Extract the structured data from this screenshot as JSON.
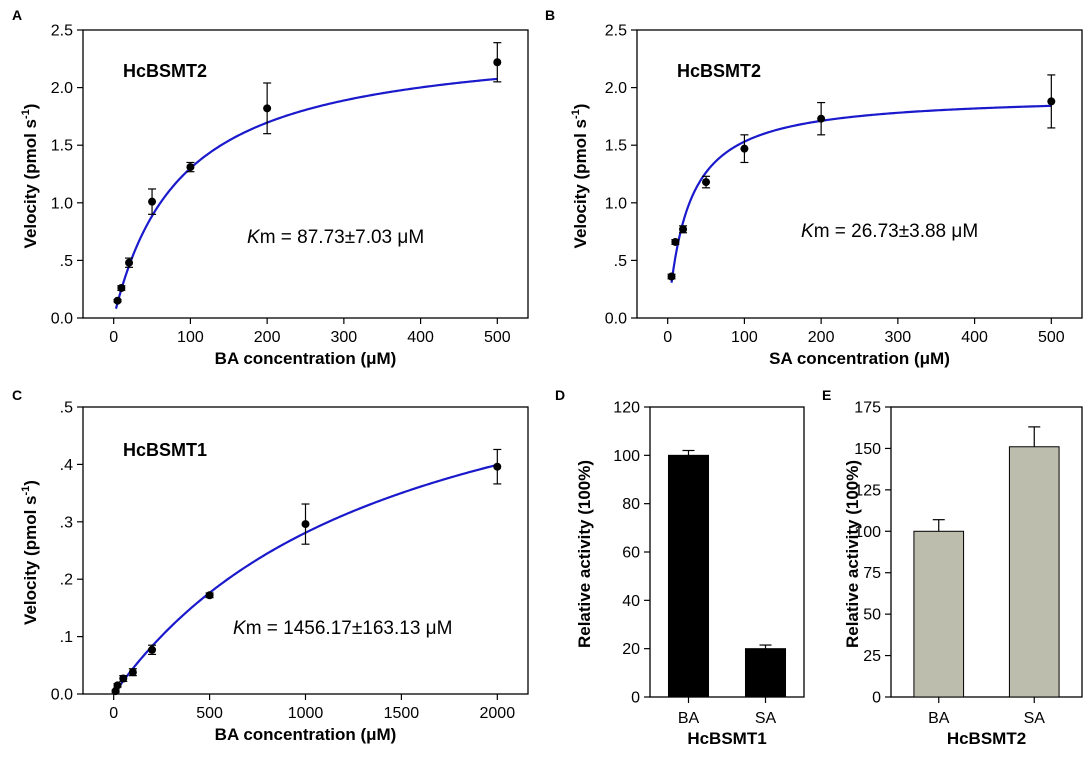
{
  "chart_data": [
    {
      "panel": "A",
      "type": "scatter",
      "enzyme_label": "HcBSMT2",
      "km_italic": "K",
      "km_rest": "m = 87.73±7.03 μM",
      "km": 87.73,
      "vmax": 2.44,
      "xlabel": "BA concentration (μM)",
      "ylabel": "Velocity (pmol s⁻¹)",
      "xlim": [
        -40,
        540
      ],
      "ylim": [
        0,
        2.5
      ],
      "xticks": [
        0,
        100,
        200,
        300,
        400,
        500
      ],
      "xtick_labels": [
        "0",
        "100",
        "200",
        "300",
        "400",
        "500"
      ],
      "yticks": [
        0,
        0.5,
        1.0,
        1.5,
        2.0,
        2.5
      ],
      "ytick_labels": [
        "0.0",
        ".5",
        "1.0",
        "1.5",
        "2.0",
        "2.5"
      ],
      "fit_start": 3,
      "x": [
        5,
        10,
        20,
        50,
        100,
        200,
        500
      ],
      "y": [
        0.15,
        0.26,
        0.48,
        1.01,
        1.31,
        1.82,
        2.22
      ],
      "err": [
        0.01,
        0.02,
        0.04,
        0.11,
        0.04,
        0.22,
        0.17
      ]
    },
    {
      "panel": "B",
      "type": "scatter",
      "enzyme_label": "HcBSMT2",
      "km_italic": "K",
      "km_rest": "m = 26.73±3.88 μM",
      "km": 26.73,
      "vmax": 1.94,
      "xlabel": "SA concentration (μM)",
      "ylabel": "Velocity (pmol s⁻¹)",
      "xlim": [
        -40,
        540
      ],
      "ylim": [
        0,
        2.5
      ],
      "xticks": [
        0,
        100,
        200,
        300,
        400,
        500
      ],
      "xtick_labels": [
        "0",
        "100",
        "200",
        "300",
        "400",
        "500"
      ],
      "yticks": [
        0,
        0.5,
        1.0,
        1.5,
        2.0,
        2.5
      ],
      "ytick_labels": [
        "0.0",
        ".5",
        "1.0",
        "1.5",
        "2.0",
        "2.5"
      ],
      "fit_start": 5,
      "x": [
        5,
        10,
        20,
        50,
        100,
        200,
        500
      ],
      "y": [
        0.36,
        0.66,
        0.77,
        1.18,
        1.47,
        1.73,
        1.88
      ],
      "err": [
        0.02,
        0.02,
        0.03,
        0.05,
        0.12,
        0.14,
        0.23
      ]
    },
    {
      "panel": "C",
      "type": "scatter",
      "enzyme_label": "HcBSMT1",
      "km_italic": "K",
      "km_rest": "m = 1456.17±163.13 μM",
      "km": 1456.17,
      "vmax": 0.69,
      "xlabel": "BA concentration (μM)",
      "ylabel": "Velocity (pmol s⁻¹)",
      "xlim": [
        -160,
        2160
      ],
      "ylim": [
        0,
        0.5
      ],
      "xticks": [
        0,
        500,
        1000,
        1500,
        2000
      ],
      "xtick_labels": [
        "0",
        "500",
        "1000",
        "1500",
        "2000"
      ],
      "yticks": [
        0,
        0.1,
        0.2,
        0.3,
        0.4,
        0.5
      ],
      "ytick_labels": [
        "0.0",
        ".1",
        ".2",
        ".3",
        ".4",
        ".5"
      ],
      "fit_start": 5,
      "x": [
        10,
        20,
        50,
        100,
        200,
        500,
        1000,
        2000
      ],
      "y": [
        0.005,
        0.015,
        0.027,
        0.038,
        0.077,
        0.172,
        0.296,
        0.396
      ],
      "err": [
        0.002,
        0.003,
        0.005,
        0.006,
        0.008,
        0.004,
        0.035,
        0.03
      ]
    },
    {
      "panel": "D",
      "type": "bar",
      "group_label": "HcBSMT1",
      "ylabel": "Relative activity (100%)",
      "categories": [
        "BA",
        "SA"
      ],
      "values": [
        100,
        20
      ],
      "err": [
        2,
        1.5
      ],
      "ylim": [
        0,
        120
      ],
      "yticks": [
        0,
        20,
        40,
        60,
        80,
        100,
        120
      ],
      "ytick_labels": [
        "0",
        "20",
        "40",
        "60",
        "80",
        "100",
        "120"
      ],
      "bar_color": "#000000"
    },
    {
      "panel": "E",
      "type": "bar",
      "group_label": "HcBSMT2",
      "ylabel": "Relative activity (100%)",
      "categories": [
        "BA",
        "SA"
      ],
      "values": [
        100,
        151
      ],
      "err": [
        7,
        12
      ],
      "ylim": [
        0,
        175
      ],
      "yticks": [
        0,
        25,
        50,
        75,
        100,
        125,
        150,
        175
      ],
      "ytick_labels": [
        "0",
        "25",
        "50",
        "75",
        "100",
        "125",
        "150",
        "175"
      ],
      "bar_color": "#bdbdae"
    }
  ],
  "colors": {
    "fit_line": "#1a1acc",
    "marker": "#000000"
  }
}
